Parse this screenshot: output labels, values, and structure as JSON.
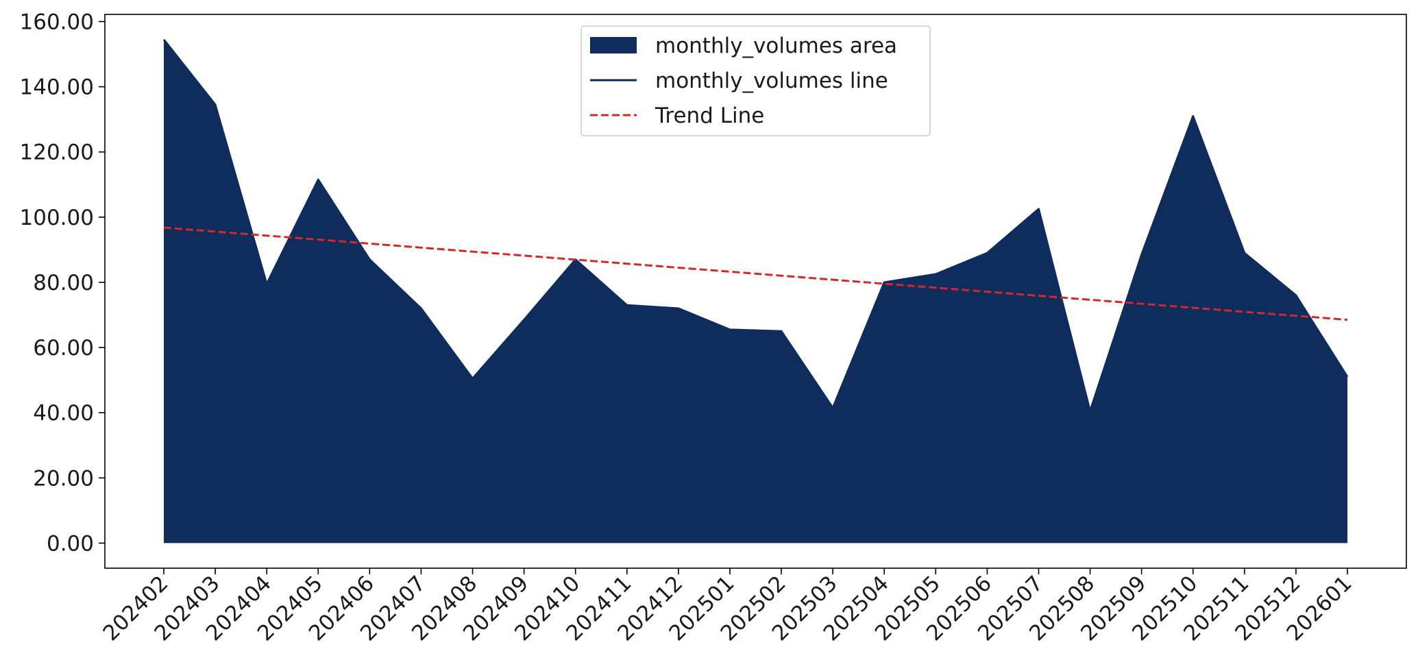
{
  "chart_data": {
    "type": "area",
    "title": "",
    "xlabel": "",
    "ylabel": "",
    "categories": [
      "202402",
      "202403",
      "202404",
      "202405",
      "202406",
      "202407",
      "202408",
      "202409",
      "202410",
      "202411",
      "202412",
      "202501",
      "202502",
      "202503",
      "202504",
      "202505",
      "202506",
      "202507",
      "202508",
      "202509",
      "202510",
      "202511",
      "202512",
      "202601"
    ],
    "series": [
      {
        "name": "monthly_volumes area",
        "values": [
          154.5,
          134.5,
          79.5,
          111.5,
          87.0,
          72.0,
          50.5,
          68.5,
          87.0,
          73.0,
          72.0,
          65.5,
          65.0,
          41.5,
          80.0,
          82.5,
          89.0,
          102.5,
          40.5,
          88.5,
          131.0,
          89.0,
          76.0,
          51.0
        ],
        "color": "#0e2d5c"
      },
      {
        "name": "monthly_volumes line",
        "values": [
          154.5,
          134.5,
          79.5,
          111.5,
          87.0,
          72.0,
          50.5,
          68.5,
          87.0,
          73.0,
          72.0,
          65.5,
          65.0,
          41.5,
          80.0,
          82.5,
          89.0,
          102.5,
          40.5,
          88.5,
          131.0,
          89.0,
          76.0,
          51.0
        ],
        "color": "#0e2d5c"
      },
      {
        "name": "Trend Line",
        "start": 96.8,
        "end": 68.5,
        "color": "#d62728",
        "style": "dashed"
      }
    ],
    "ylim": [
      -7.7,
      162.2
    ],
    "yticks": [
      "0.00",
      "20.00",
      "40.00",
      "60.00",
      "80.00",
      "100.00",
      "120.00",
      "140.00",
      "160.00"
    ],
    "ytick_values": [
      0,
      20,
      40,
      60,
      80,
      100,
      120,
      140,
      160
    ],
    "grid": false,
    "legend_position": "top-center",
    "legend": [
      {
        "label": "monthly_volumes area",
        "kind": "patch"
      },
      {
        "label": "monthly_volumes line",
        "kind": "line"
      },
      {
        "label": "Trend Line",
        "kind": "dashed"
      }
    ]
  }
}
